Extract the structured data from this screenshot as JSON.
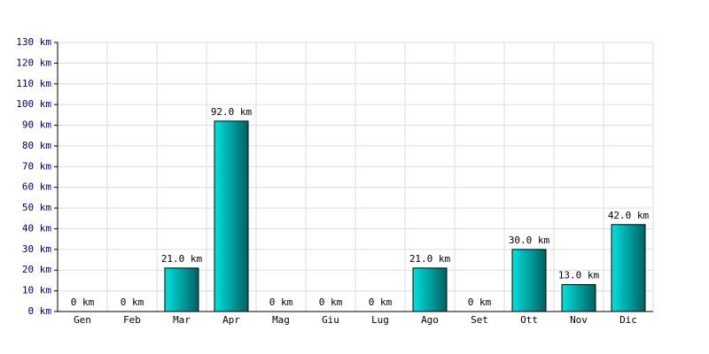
{
  "chart_data": {
    "type": "bar",
    "categories": [
      "Gen",
      "Feb",
      "Mar",
      "Apr",
      "Mag",
      "Giu",
      "Lug",
      "Ago",
      "Set",
      "Ott",
      "Nov",
      "Dic"
    ],
    "values": [
      0,
      0,
      21,
      92,
      0,
      0,
      0,
      21,
      0,
      30,
      13,
      42
    ],
    "value_labels": [
      "0 km",
      "0 km",
      "21.0 km",
      "92.0 km",
      "0 km",
      "0 km",
      "0 km",
      "21.0 km",
      "0 km",
      "30.0 km",
      "13.0 km",
      "42.0 km"
    ],
    "color": "#00e0e0",
    "ylim": [
      0,
      130
    ],
    "yticks": [
      {
        "value": 0,
        "label": "0 km"
      },
      {
        "value": 10,
        "label": "10 km"
      },
      {
        "value": 20,
        "label": "20 km"
      },
      {
        "value": 30,
        "label": "30 km"
      },
      {
        "value": 40,
        "label": "40 km"
      },
      {
        "value": 50,
        "label": "50 km"
      },
      {
        "value": 60,
        "label": "60 km"
      },
      {
        "value": 70,
        "label": "70 km"
      },
      {
        "value": 80,
        "label": "80 km"
      },
      {
        "value": 90,
        "label": "90 km"
      },
      {
        "value": 100,
        "label": "100 km"
      },
      {
        "value": 110,
        "label": "110 km"
      },
      {
        "value": 120,
        "label": "120 km"
      },
      {
        "value": 130,
        "label": "130 km"
      }
    ],
    "grid": true
  }
}
